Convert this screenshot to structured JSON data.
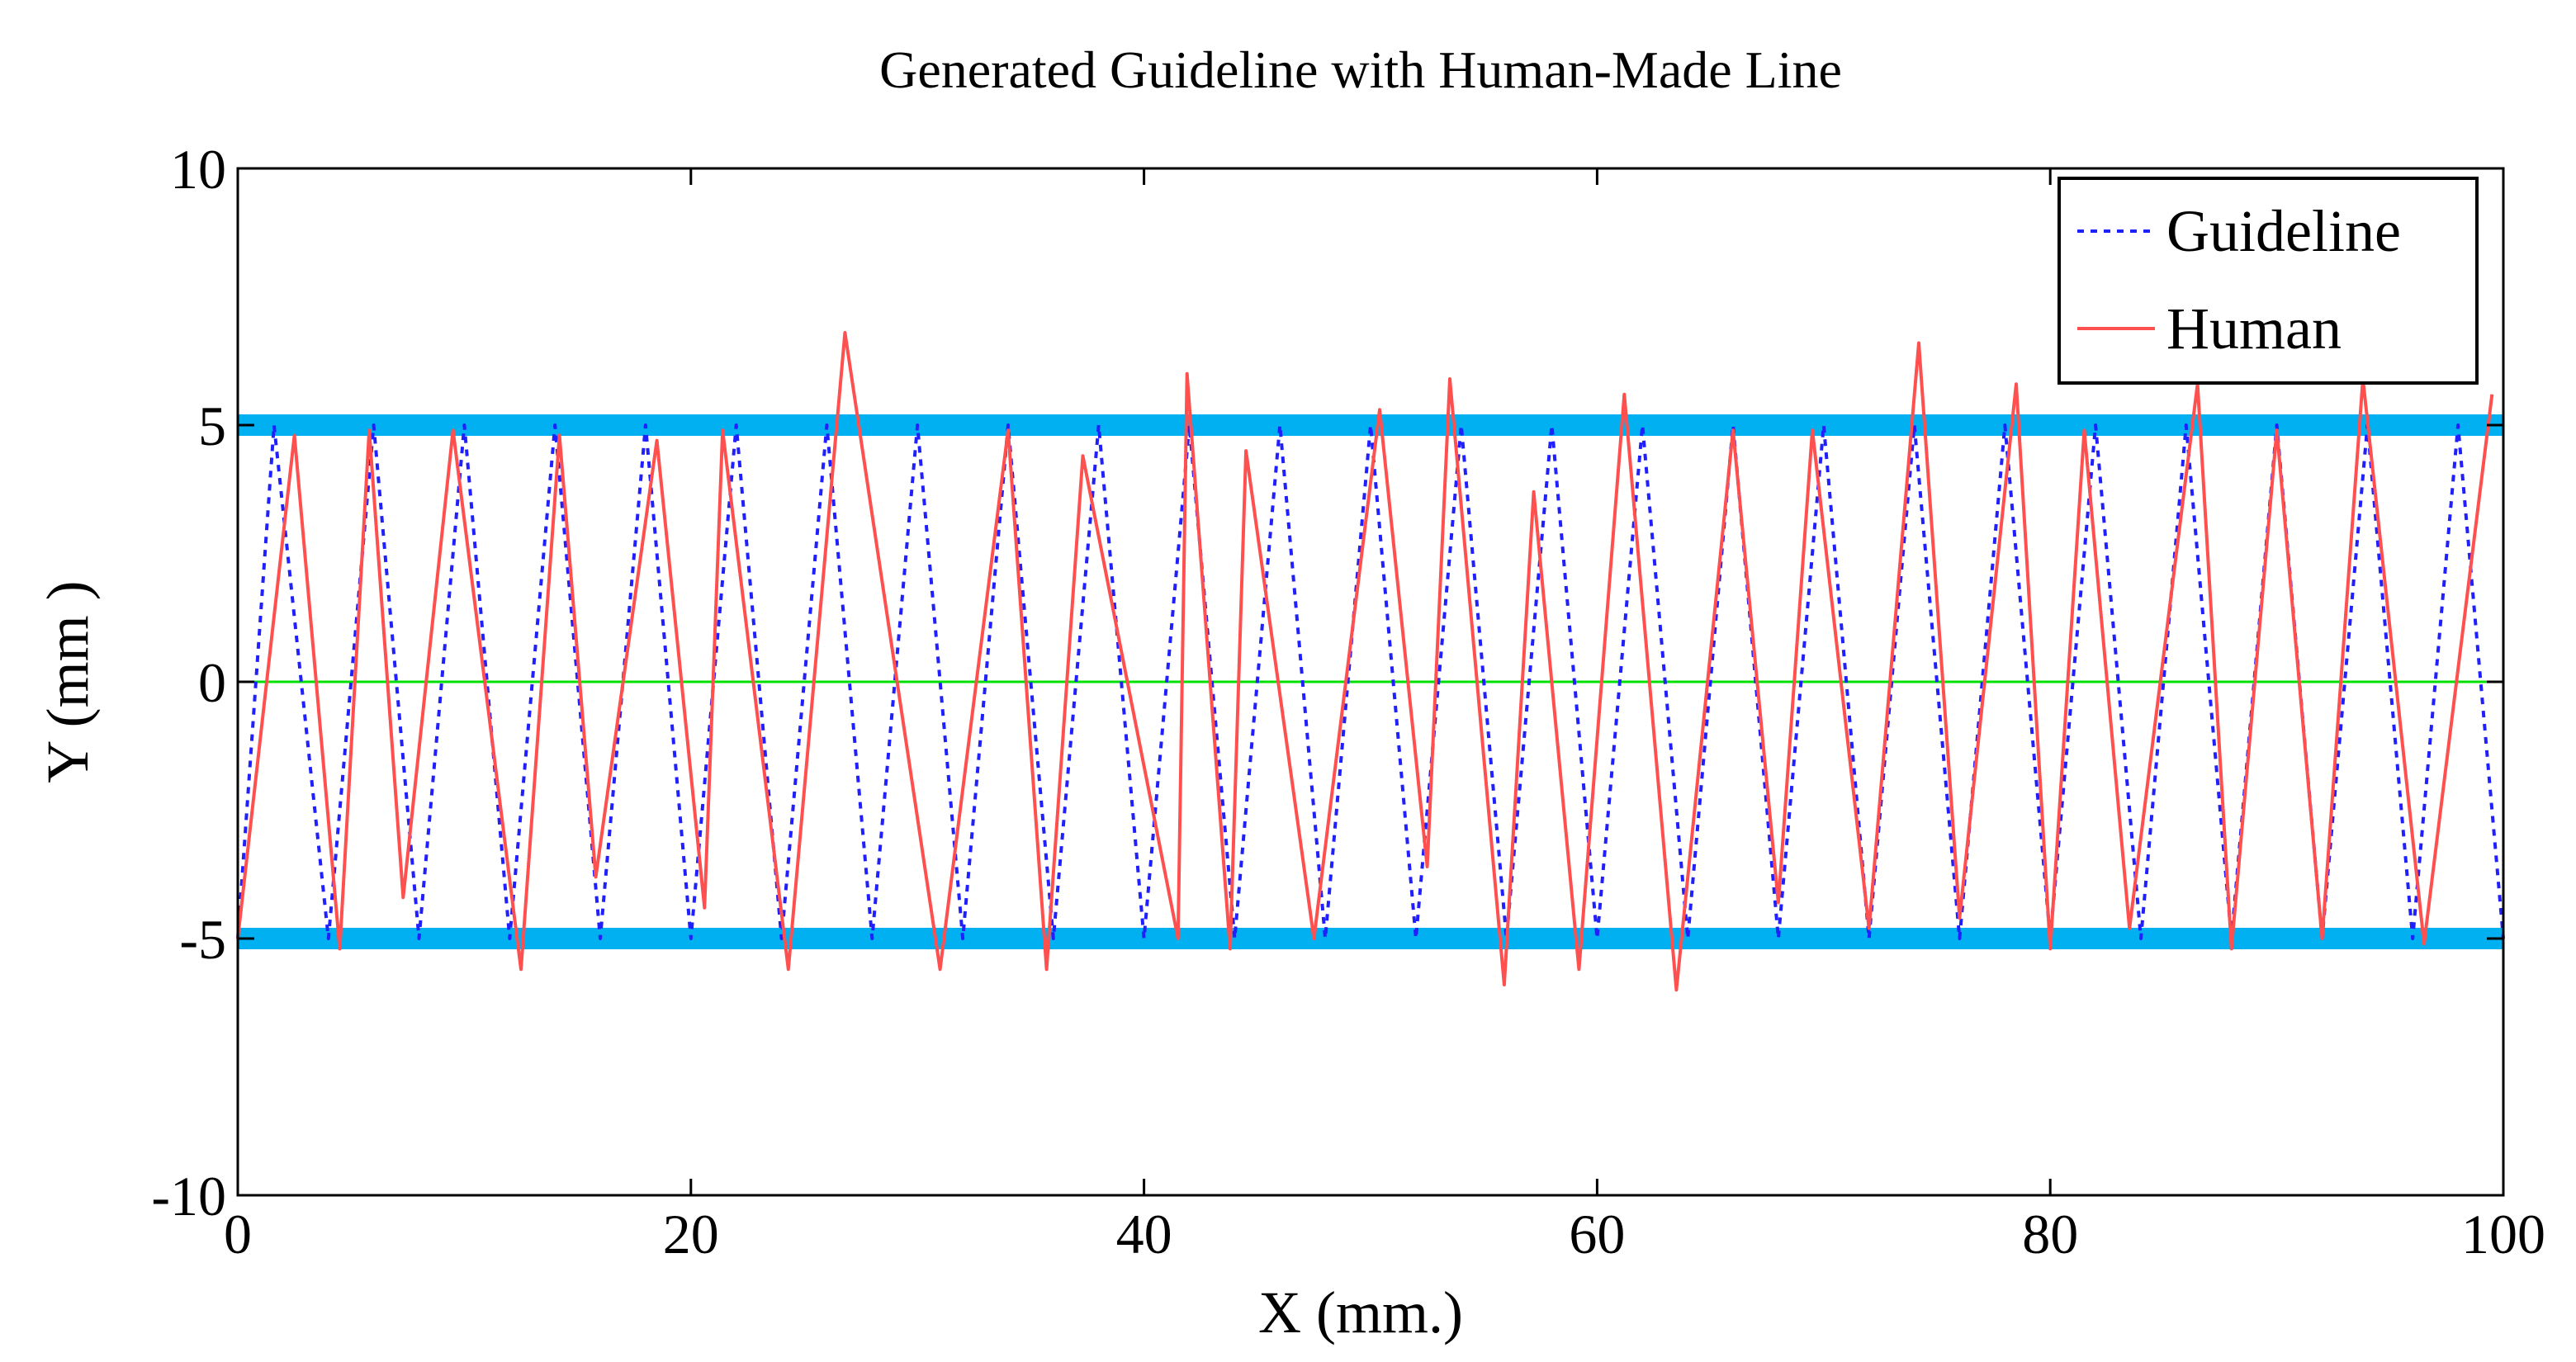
{
  "chart_data": {
    "type": "line",
    "title": "Generated Guideline with Human-Made Line",
    "xlabel": "X (mm.)",
    "ylabel": "Y (mm )",
    "xlim": [
      0,
      100
    ],
    "ylim": [
      -10,
      10
    ],
    "xticks": [
      0,
      20,
      40,
      60,
      80,
      100
    ],
    "yticks": [
      -10,
      -5,
      0,
      5,
      10
    ],
    "grid": false,
    "legend_position": "top-right",
    "reference_lines": [
      {
        "name": "upper-bound",
        "y": 5,
        "color": "#00b0f0"
      },
      {
        "name": "lower-bound",
        "y": -5,
        "color": "#00b0f0"
      },
      {
        "name": "center-line",
        "y": 0,
        "color": "#00e000"
      }
    ],
    "series": [
      {
        "name": "Guideline",
        "style": "dotted",
        "color": "#2020ff",
        "x": [
          0,
          1.6,
          4.0,
          6.0,
          8.0,
          10.0,
          12.0,
          14.0,
          16.0,
          18.0,
          20.0,
          22.0,
          24.0,
          26.0,
          28.0,
          30.0,
          32.0,
          34.0,
          36.0,
          38.0,
          40.0,
          42.0,
          44.0,
          46.0,
          48.0,
          50.0,
          52.0,
          54.0,
          56.0,
          58.0,
          60.0,
          62.0,
          64.0,
          66.0,
          68.0,
          70.0,
          72.0,
          74.0,
          76.0,
          78.0,
          80.0,
          82.0,
          84.0,
          86.0,
          88.0,
          90.0,
          92.0,
          94.0,
          96.0,
          98.0,
          100.0
        ],
        "y": [
          -5,
          5,
          -5,
          5,
          -5,
          5,
          -5,
          5,
          -5,
          5,
          -5,
          5,
          -5,
          5,
          -5,
          5,
          -5,
          5,
          -5,
          5,
          -5,
          5,
          -5,
          5,
          -5,
          5,
          -5,
          5,
          -5,
          5,
          -5,
          5,
          -5,
          5,
          -5,
          5,
          -5,
          5,
          -5,
          5,
          -5,
          5,
          -5,
          5,
          -5,
          5,
          -5,
          5,
          -5,
          5,
          -5
        ]
      },
      {
        "name": "Human",
        "style": "solid",
        "color": "#ff5050",
        "x": [
          0,
          2.5,
          4.5,
          5.8,
          7.3,
          9.5,
          12.5,
          14.2,
          15.8,
          18.5,
          20.6,
          21.4,
          24.3,
          26.8,
          31.0,
          34.0,
          35.7,
          37.3,
          41.5,
          41.9,
          43.8,
          44.5,
          47.5,
          50.4,
          52.5,
          53.5,
          55.9,
          57.2,
          59.2,
          61.2,
          63.5,
          66.0,
          68.0,
          69.5,
          72.0,
          74.2,
          76.0,
          78.5,
          80.0,
          81.5,
          83.5,
          86.5,
          88.0,
          90.0,
          92.0,
          93.8,
          96.5,
          99.5
        ],
        "y": [
          -5,
          4.8,
          -5.2,
          4.9,
          -4.2,
          4.9,
          -5.6,
          4.8,
          -3.8,
          4.7,
          -4.4,
          4.9,
          -5.6,
          6.8,
          -5.6,
          4.9,
          -5.6,
          4.4,
          -5.0,
          6.0,
          -5.2,
          4.5,
          -5.0,
          5.3,
          -3.6,
          5.9,
          -5.9,
          3.7,
          -5.6,
          5.6,
          -6.0,
          4.9,
          -4.3,
          4.9,
          -4.8,
          6.6,
          -4.6,
          5.8,
          -5.2,
          4.9,
          -4.8,
          5.8,
          -5.2,
          4.9,
          -5.0,
          5.9,
          -5.1,
          5.6
        ]
      }
    ]
  }
}
